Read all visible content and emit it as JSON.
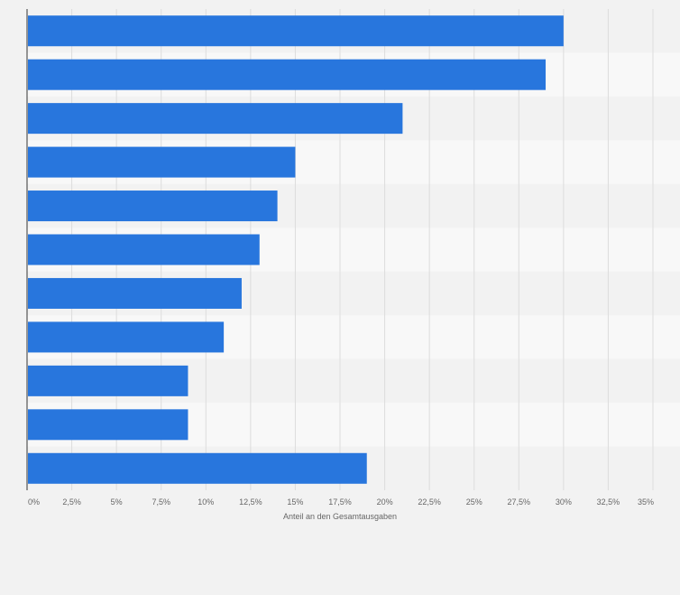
{
  "chart_data": {
    "type": "bar",
    "orientation": "horizontal",
    "values": [
      30,
      29,
      21,
      15,
      14,
      13,
      12,
      11,
      9,
      9,
      19
    ],
    "xlabel": "Anteil an den Gesamtausgaben",
    "xlim": [
      0,
      35
    ],
    "x_ticks": [
      0,
      2.5,
      5,
      7.5,
      10,
      12.5,
      15,
      17.5,
      20,
      22.5,
      25,
      27.5,
      30,
      32.5,
      35
    ],
    "x_tick_labels": [
      "0%",
      "2,5%",
      "5%",
      "7,5%",
      "10%",
      "12,5%",
      "15%",
      "17,5%",
      "20%",
      "22,5%",
      "25%",
      "27,5%",
      "30%",
      "32,5%",
      "35%"
    ],
    "grid": true,
    "bar_color": "#2876dd",
    "band_colors": [
      "#f2f2f2",
      "#f8f8f8"
    ],
    "gridline_color": "#dddddd",
    "background_color": "#f2f2f2"
  }
}
